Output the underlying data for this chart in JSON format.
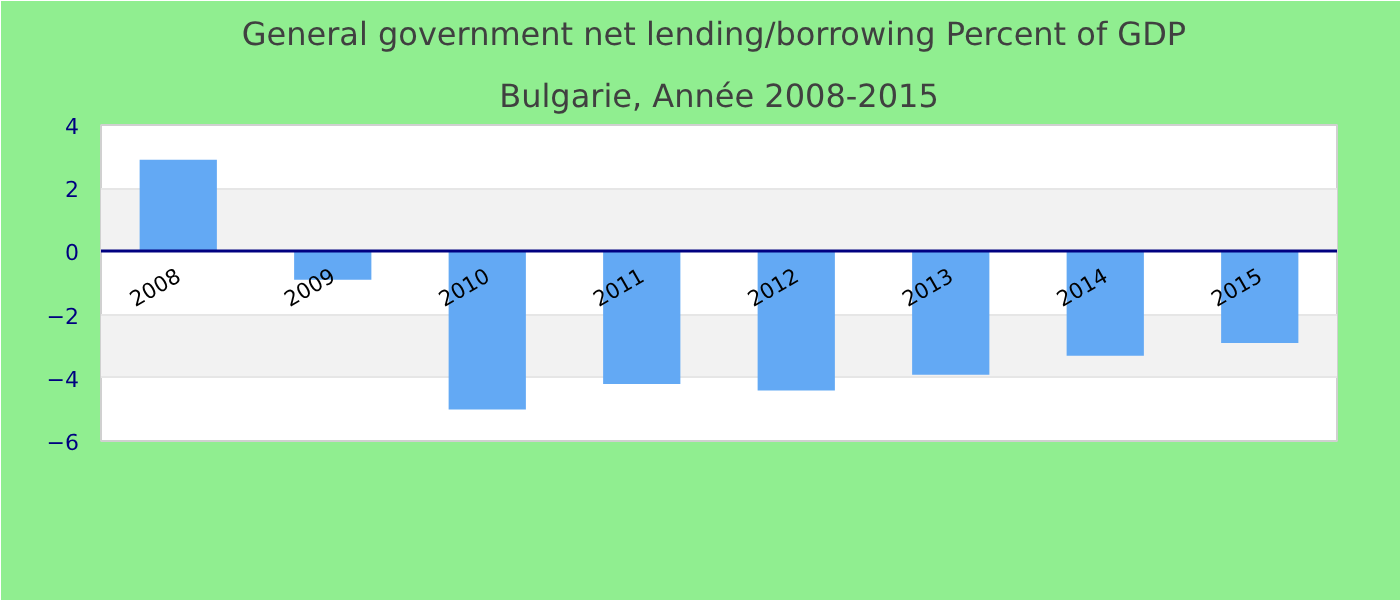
{
  "chart_data": {
    "type": "bar",
    "title": "General government net lending/borrowing  Percent of GDP",
    "subtitle": "Bulgarie, Année 2008-2015",
    "categories": [
      "2008",
      "2009",
      "2010",
      "2011",
      "2012",
      "2013",
      "2014",
      "2015"
    ],
    "values": [
      2.9,
      -0.9,
      -5.0,
      -4.2,
      -4.4,
      -3.9,
      -3.3,
      -2.9
    ],
    "color": "#63a9f4",
    "ylim": [
      -6,
      4
    ],
    "yticks": [
      -6,
      -4,
      -2,
      0,
      2,
      4
    ],
    "grid": "y"
  }
}
